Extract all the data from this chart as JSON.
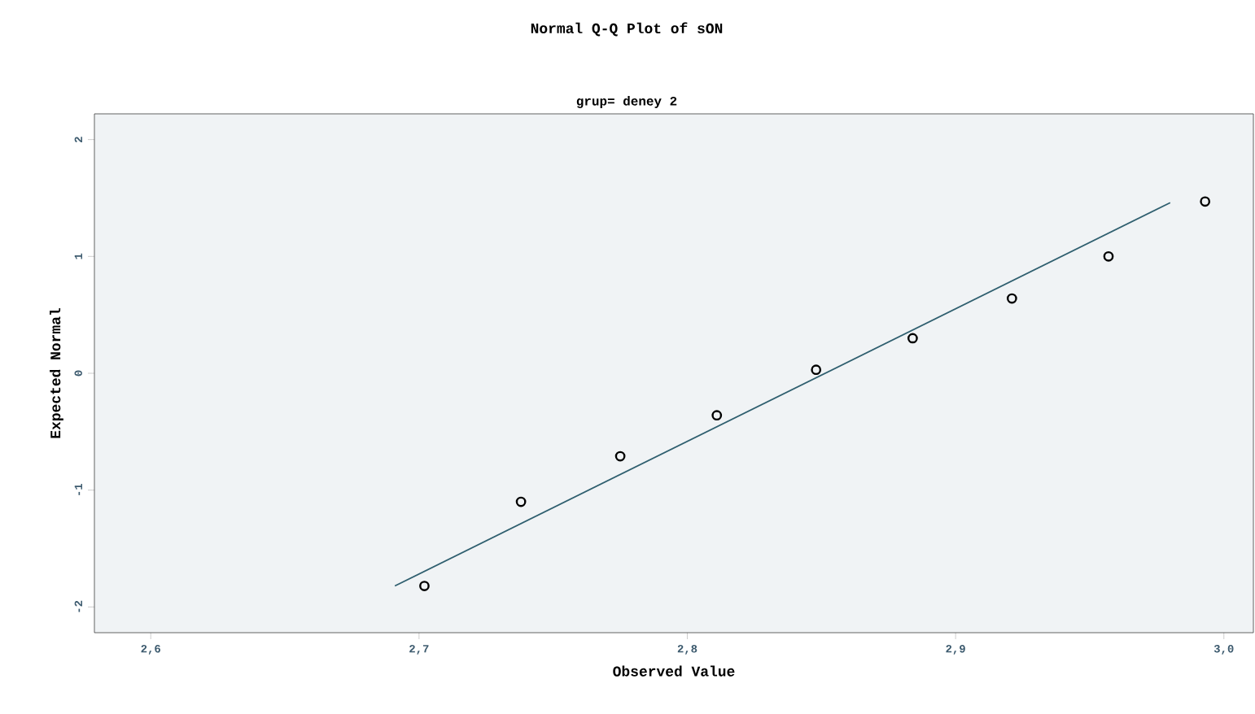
{
  "chart_data": {
    "type": "scatter",
    "title": "Normal Q-Q Plot of sON",
    "subtitle": "grup= deney 2",
    "xlabel": "Observed Value",
    "ylabel": "Expected Normal",
    "xlim": [
      2.579,
      3.011
    ],
    "ylim": [
      -2.22,
      2.22
    ],
    "xticks": [
      {
        "value": 2.6,
        "label": "2,6"
      },
      {
        "value": 2.7,
        "label": "2,7"
      },
      {
        "value": 2.8,
        "label": "2,8"
      },
      {
        "value": 2.9,
        "label": "2,9"
      },
      {
        "value": 3.0,
        "label": "3,0"
      }
    ],
    "yticks": [
      -2,
      -1,
      0,
      1,
      2
    ],
    "grid": false,
    "series": [
      {
        "marker": "circle",
        "color": "#000000",
        "x": [
          2.702,
          2.738,
          2.775,
          2.811,
          2.848,
          2.884,
          2.921,
          2.957,
          2.993
        ],
        "values": [
          -1.82,
          -1.1,
          -0.71,
          -0.36,
          0.03,
          0.3,
          0.64,
          1.0,
          1.47
        ]
      },
      {
        "type": "line",
        "marker": "none",
        "color": "#2f5f6f",
        "x": [
          2.691,
          2.98
        ],
        "values": [
          -1.82,
          1.46
        ]
      }
    ]
  }
}
